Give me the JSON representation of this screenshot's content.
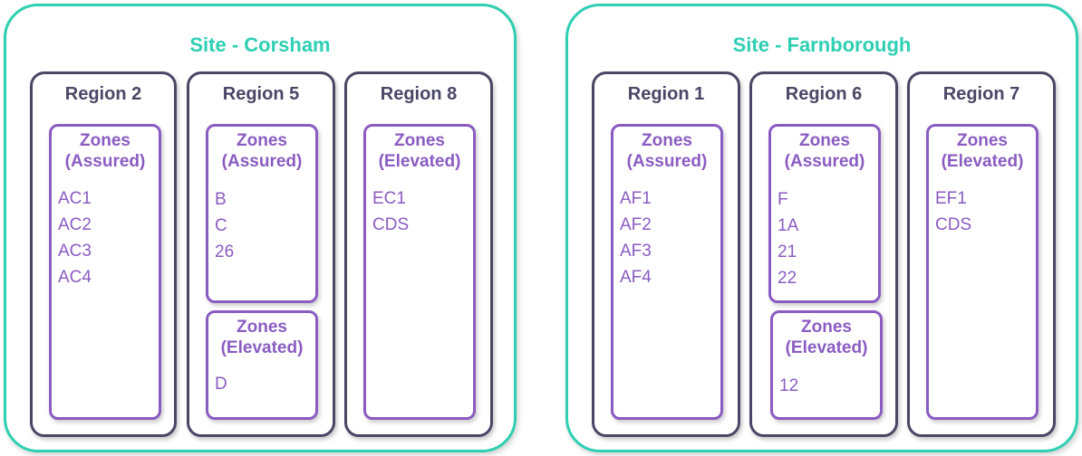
{
  "sites": [
    {
      "title": "Site - Corsham",
      "regions": [
        {
          "title": "Region 2",
          "zones": [
            {
              "title_line1": "Zones",
              "title_line2": "(Assured)",
              "items": [
                "AC1",
                "AC2",
                "AC3",
                "AC4"
              ]
            }
          ]
        },
        {
          "title": "Region 5",
          "zones": [
            {
              "title_line1": "Zones",
              "title_line2": "(Assured)",
              "items": [
                "B",
                "C",
                "26"
              ]
            },
            {
              "title_line1": "Zones",
              "title_line2": "(Elevated)",
              "items": [
                "D"
              ]
            }
          ]
        },
        {
          "title": "Region 8",
          "zones": [
            {
              "title_line1": "Zones",
              "title_line2": "(Elevated)",
              "items": [
                "EC1",
                "CDS"
              ]
            }
          ]
        }
      ]
    },
    {
      "title": "Site - Farnborough",
      "regions": [
        {
          "title": "Region 1",
          "zones": [
            {
              "title_line1": "Zones",
              "title_line2": "(Assured)",
              "items": [
                "AF1",
                "AF2",
                "AF3",
                "AF4"
              ]
            }
          ]
        },
        {
          "title": "Region 6",
          "zones": [
            {
              "title_line1": "Zones",
              "title_line2": "(Assured)",
              "items": [
                "F",
                "1A",
                "21",
                "22"
              ]
            },
            {
              "title_line1": "Zones",
              "title_line2": "(Elevated)",
              "items": [
                "12"
              ]
            }
          ]
        },
        {
          "title": "Region 7",
          "zones": [
            {
              "title_line1": "Zones",
              "title_line2": "(Elevated)",
              "items": [
                "EF1",
                "CDS"
              ]
            }
          ]
        }
      ]
    }
  ]
}
